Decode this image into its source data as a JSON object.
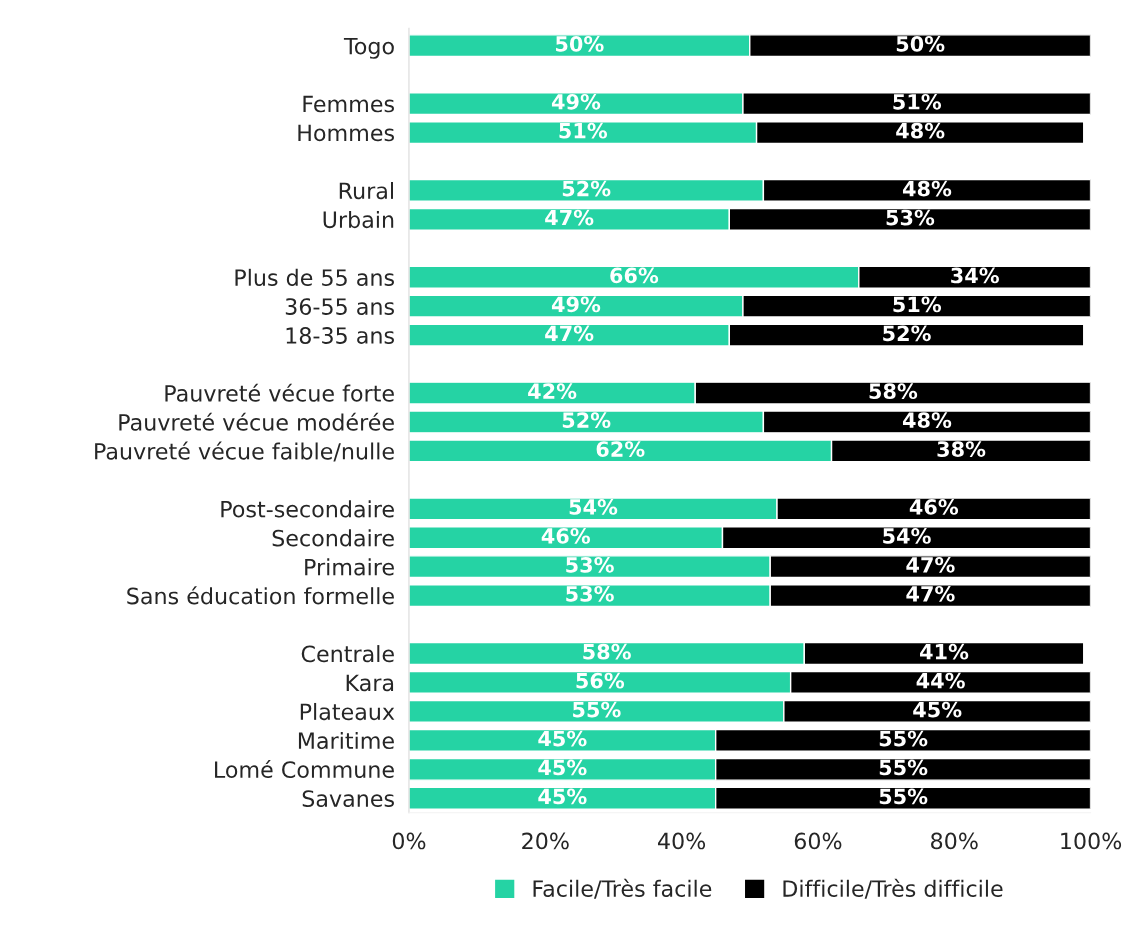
{
  "chart_data": {
    "type": "bar",
    "orientation": "horizontal",
    "stacked": true,
    "categories": [
      "Togo",
      null,
      "Femmes",
      "Hommes",
      null,
      "Rural",
      "Urbain",
      null,
      "Plus de 55 ans",
      "36-55 ans",
      "18-35 ans",
      null,
      "Pauvreté vécue forte",
      "Pauvreté vécue modérée",
      "Pauvreté vécue faible/nulle",
      null,
      "Post-secondaire",
      "Secondaire",
      "Primaire",
      "Sans éducation formelle",
      null,
      "Centrale",
      "Kara",
      "Plateaux",
      "Maritime",
      "Lomé Commune",
      "Savanes"
    ],
    "series": [
      {
        "name": "Facile/Très facile",
        "color": "#25d3a4",
        "values": [
          50,
          null,
          49,
          51,
          null,
          52,
          47,
          null,
          66,
          49,
          47,
          null,
          42,
          52,
          62,
          null,
          54,
          46,
          53,
          53,
          null,
          58,
          56,
          55,
          45,
          45,
          45
        ],
        "value_labels": [
          "50%",
          null,
          "49%",
          "51%",
          null,
          "52%",
          "47%",
          null,
          "66%",
          "49%",
          "47%",
          null,
          "42%",
          "52%",
          "62%",
          null,
          "54%",
          "46%",
          "53%",
          "53%",
          null,
          "58%",
          "56%",
          "55%",
          "45%",
          "45%",
          "45%"
        ]
      },
      {
        "name": "Difficile/Très difficile",
        "color": "#000000",
        "values": [
          50,
          null,
          51,
          48,
          null,
          48,
          53,
          null,
          34,
          51,
          52,
          null,
          58,
          48,
          38,
          null,
          46,
          54,
          47,
          47,
          null,
          41,
          44,
          45,
          55,
          55,
          55
        ],
        "value_labels": [
          "50%",
          null,
          "51%",
          "48%",
          null,
          "48%",
          "53%",
          null,
          "34%",
          "51%",
          "52%",
          null,
          "58%",
          "48%",
          "38%",
          null,
          "46%",
          "54%",
          "47%",
          "47%",
          null,
          "41%",
          "44%",
          "45%",
          "55%",
          "55%",
          "55%"
        ]
      }
    ],
    "xlim": [
      0,
      100
    ],
    "xticks": [
      {
        "value": 0,
        "label": "0%"
      },
      {
        "value": 20,
        "label": "20%"
      },
      {
        "value": 40,
        "label": "40%"
      },
      {
        "value": 60,
        "label": "60%"
      },
      {
        "value": 80,
        "label": "80%"
      },
      {
        "value": 100,
        "label": "100%"
      }
    ],
    "grid": false,
    "legend": "bottom"
  }
}
